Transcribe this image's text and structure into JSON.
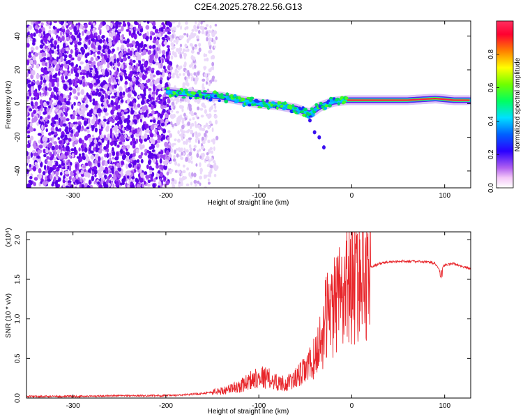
{
  "title": "C2E4.2025.278.22.56.G13",
  "chart_data": [
    {
      "type": "heatmap",
      "xlabel": "Height of straight line (km)",
      "ylabel": "Frequency (Hz)",
      "xlim": [
        -350,
        128
      ],
      "ylim": [
        -50,
        49
      ],
      "xticks": [
        -300,
        -200,
        -100,
        0,
        100
      ],
      "yticks": [
        -40,
        -20,
        0,
        20,
        40
      ],
      "colorbar": {
        "label": "Normalized spectral amplitude",
        "ticks": [
          0.0,
          0.2,
          0.4,
          0.6,
          0.8
        ],
        "tick_labels": [
          "0.0",
          "0.2",
          "0.4",
          "0.6",
          "0.8"
        ],
        "range": [
          0,
          1
        ]
      },
      "noise_region": {
        "x_start": -350,
        "x_end": -195,
        "description": "broadband noise"
      },
      "faint_region": {
        "x_start": -195,
        "x_end": -145
      },
      "signal_track": {
        "x": [
          -200,
          -180,
          -160,
          -140,
          -120,
          -100,
          -80,
          -60,
          -45,
          -35,
          -20,
          -5,
          20,
          60,
          90,
          110,
          128
        ],
        "y": [
          7,
          6,
          5,
          4,
          2,
          0,
          -1,
          -3,
          -6,
          -2,
          1,
          2,
          2,
          2,
          3,
          2,
          2
        ]
      },
      "dropouts": {
        "x": [
          -45,
          -40,
          -35,
          -30
        ],
        "y": [
          -10,
          -17,
          -20,
          -26
        ]
      }
    },
    {
      "type": "line",
      "xlabel": "Height of straight line (km)",
      "ylabel": "SNR (10 * v/v)",
      "yscale_label": "(x10⁴)",
      "xlim": [
        -350,
        128
      ],
      "ylim": [
        0,
        2.1
      ],
      "xticks": [
        -300,
        -200,
        -100,
        0,
        100
      ],
      "yticks": [
        0.0,
        0.5,
        1.0,
        1.5,
        2.0
      ],
      "ytick_labels": [
        "0.0",
        "0.5",
        "1.0",
        "1.5",
        "2.0"
      ],
      "color": "#e8262b",
      "series": [
        {
          "name": "SNR",
          "x": [
            -350,
            -300,
            -250,
            -200,
            -180,
            -160,
            -140,
            -120,
            -110,
            -100,
            -90,
            -80,
            -70,
            -60,
            -50,
            -40,
            -30,
            -25,
            -20,
            -15,
            -10,
            -5,
            0,
            10,
            20,
            30,
            40,
            60,
            80,
            90,
            95,
            100,
            110,
            128
          ],
          "values": [
            0.02,
            0.02,
            0.03,
            0.03,
            0.04,
            0.06,
            0.09,
            0.15,
            0.22,
            0.28,
            0.25,
            0.2,
            0.18,
            0.25,
            0.35,
            0.5,
            0.85,
            1.2,
            1.1,
            1.3,
            1.4,
            1.5,
            1.45,
            1.55,
            1.65,
            1.7,
            1.72,
            1.73,
            1.72,
            1.7,
            1.6,
            1.68,
            1.7,
            1.63
          ]
        }
      ]
    }
  ]
}
